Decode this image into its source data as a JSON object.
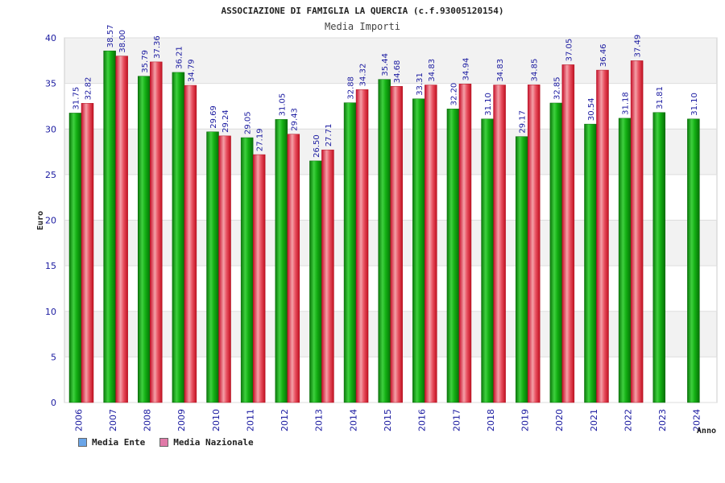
{
  "chart_data": {
    "type": "bar",
    "title": "ASSOCIAZIONE DI FAMIGLIA LA QUERCIA (c.f.93005120154)",
    "subtitle": "Media Importi",
    "xlabel": "Anno",
    "ylabel": "Euro",
    "ylim": [
      0,
      40
    ],
    "yticks": [
      0,
      5,
      10,
      15,
      20,
      25,
      30,
      35,
      40
    ],
    "categories": [
      "2006",
      "2007",
      "2008",
      "2009",
      "2010",
      "2011",
      "2012",
      "2013",
      "2014",
      "2015",
      "2016",
      "2017",
      "2018",
      "2019",
      "2020",
      "2021",
      "2022",
      "2023",
      "2024"
    ],
    "series": [
      {
        "name": "Media Ente",
        "color": "#1aa51a",
        "values": [
          31.75,
          38.57,
          35.79,
          36.21,
          29.69,
          29.05,
          31.05,
          26.5,
          32.88,
          35.44,
          33.31,
          32.2,
          31.1,
          29.17,
          32.85,
          30.54,
          31.18,
          31.81,
          31.1
        ],
        "labels": [
          "31.75",
          "38.57",
          "35.79",
          "36.21",
          "29.69",
          "29.05",
          "31.05",
          "26.50",
          "32.88",
          "35.44",
          "33.31",
          "32.20",
          "31.10",
          "29.17",
          "32.85",
          "30.54",
          "31.18",
          "31.81",
          "31.10"
        ]
      },
      {
        "name": "Media Nazionale",
        "color": "#e0303a",
        "values": [
          32.82,
          38.0,
          37.36,
          34.79,
          29.24,
          27.19,
          29.43,
          27.71,
          34.32,
          34.68,
          34.83,
          34.94,
          34.83,
          34.85,
          37.05,
          36.46,
          37.49,
          null,
          null
        ],
        "labels": [
          "32.82",
          "38.00",
          "37.36",
          "34.79",
          "29.24",
          "27.19",
          "29.43",
          "27.71",
          "34.32",
          "34.68",
          "34.83",
          "34.94",
          "34.83",
          "34.85",
          "37.05",
          "36.46",
          "37.49",
          null,
          null
        ]
      }
    ],
    "legend": [
      {
        "name": "Media Ente",
        "swatch_color": "#6aa5e8"
      },
      {
        "name": "Media Nazionale",
        "swatch_color": "#e07aa8"
      }
    ],
    "legend_position": "bottom-left",
    "grid": true
  }
}
